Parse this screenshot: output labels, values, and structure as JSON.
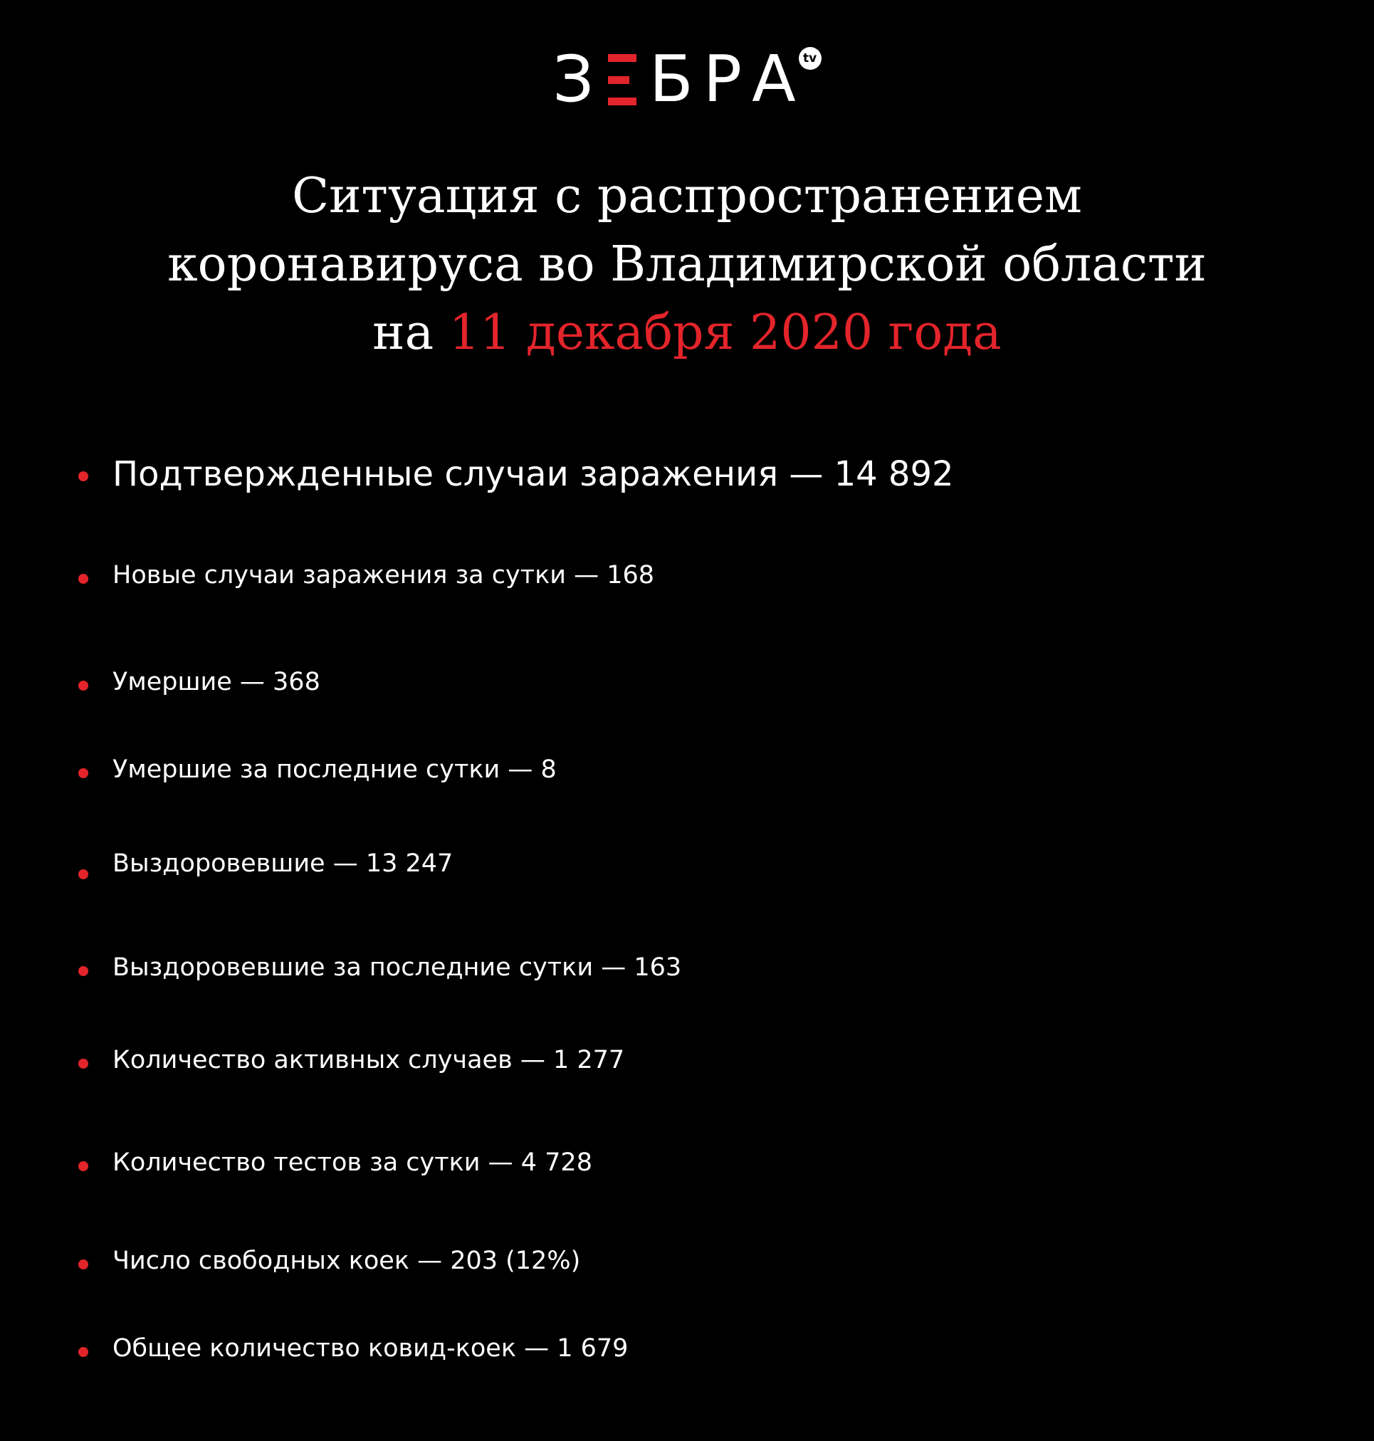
{
  "logo": {
    "text_left": "З",
    "text_right": "БРА",
    "badge": "tv",
    "accent": "#e3242b"
  },
  "title": {
    "line1": "Ситуация с распространением",
    "line2": "коронавируса во Владимирской области",
    "line3_prefix": "на",
    "line3_date": "11 декабря 2020 года"
  },
  "items": [
    {
      "label": "Подтвержденные случаи заражения — 14 892"
    },
    {
      "label": "Новые случаи заражения за сутки — 168"
    },
    {
      "label": "Умершие — 368"
    },
    {
      "label": "Умершие за последние сутки — 8"
    },
    {
      "label": "Выздоровевшие — 13 247"
    },
    {
      "label": "Выздоровевшие за последние сутки — 163"
    },
    {
      "label": "Количество активных случаев — 1 277"
    },
    {
      "label": "Количество тестов за сутки — 4 728"
    },
    {
      "label": "Число свободных коек — 203 (12%)"
    },
    {
      "label": "Общее количество ковид-коек — 1 679"
    }
  ]
}
